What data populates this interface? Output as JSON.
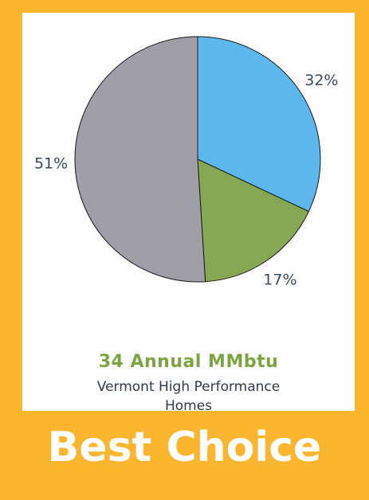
{
  "chart_data": {
    "type": "pie",
    "categories": [
      null,
      null,
      null
    ],
    "values": [
      32,
      17,
      51
    ],
    "value_labels": [
      "32%",
      "17%",
      "51%"
    ],
    "colors": [
      "#5db7ec",
      "#86a855",
      "#a09fa8"
    ],
    "title": "34 Annual MMbtu",
    "subtitle": "Vermont High Performance Homes"
  },
  "footer": "Best Choice"
}
